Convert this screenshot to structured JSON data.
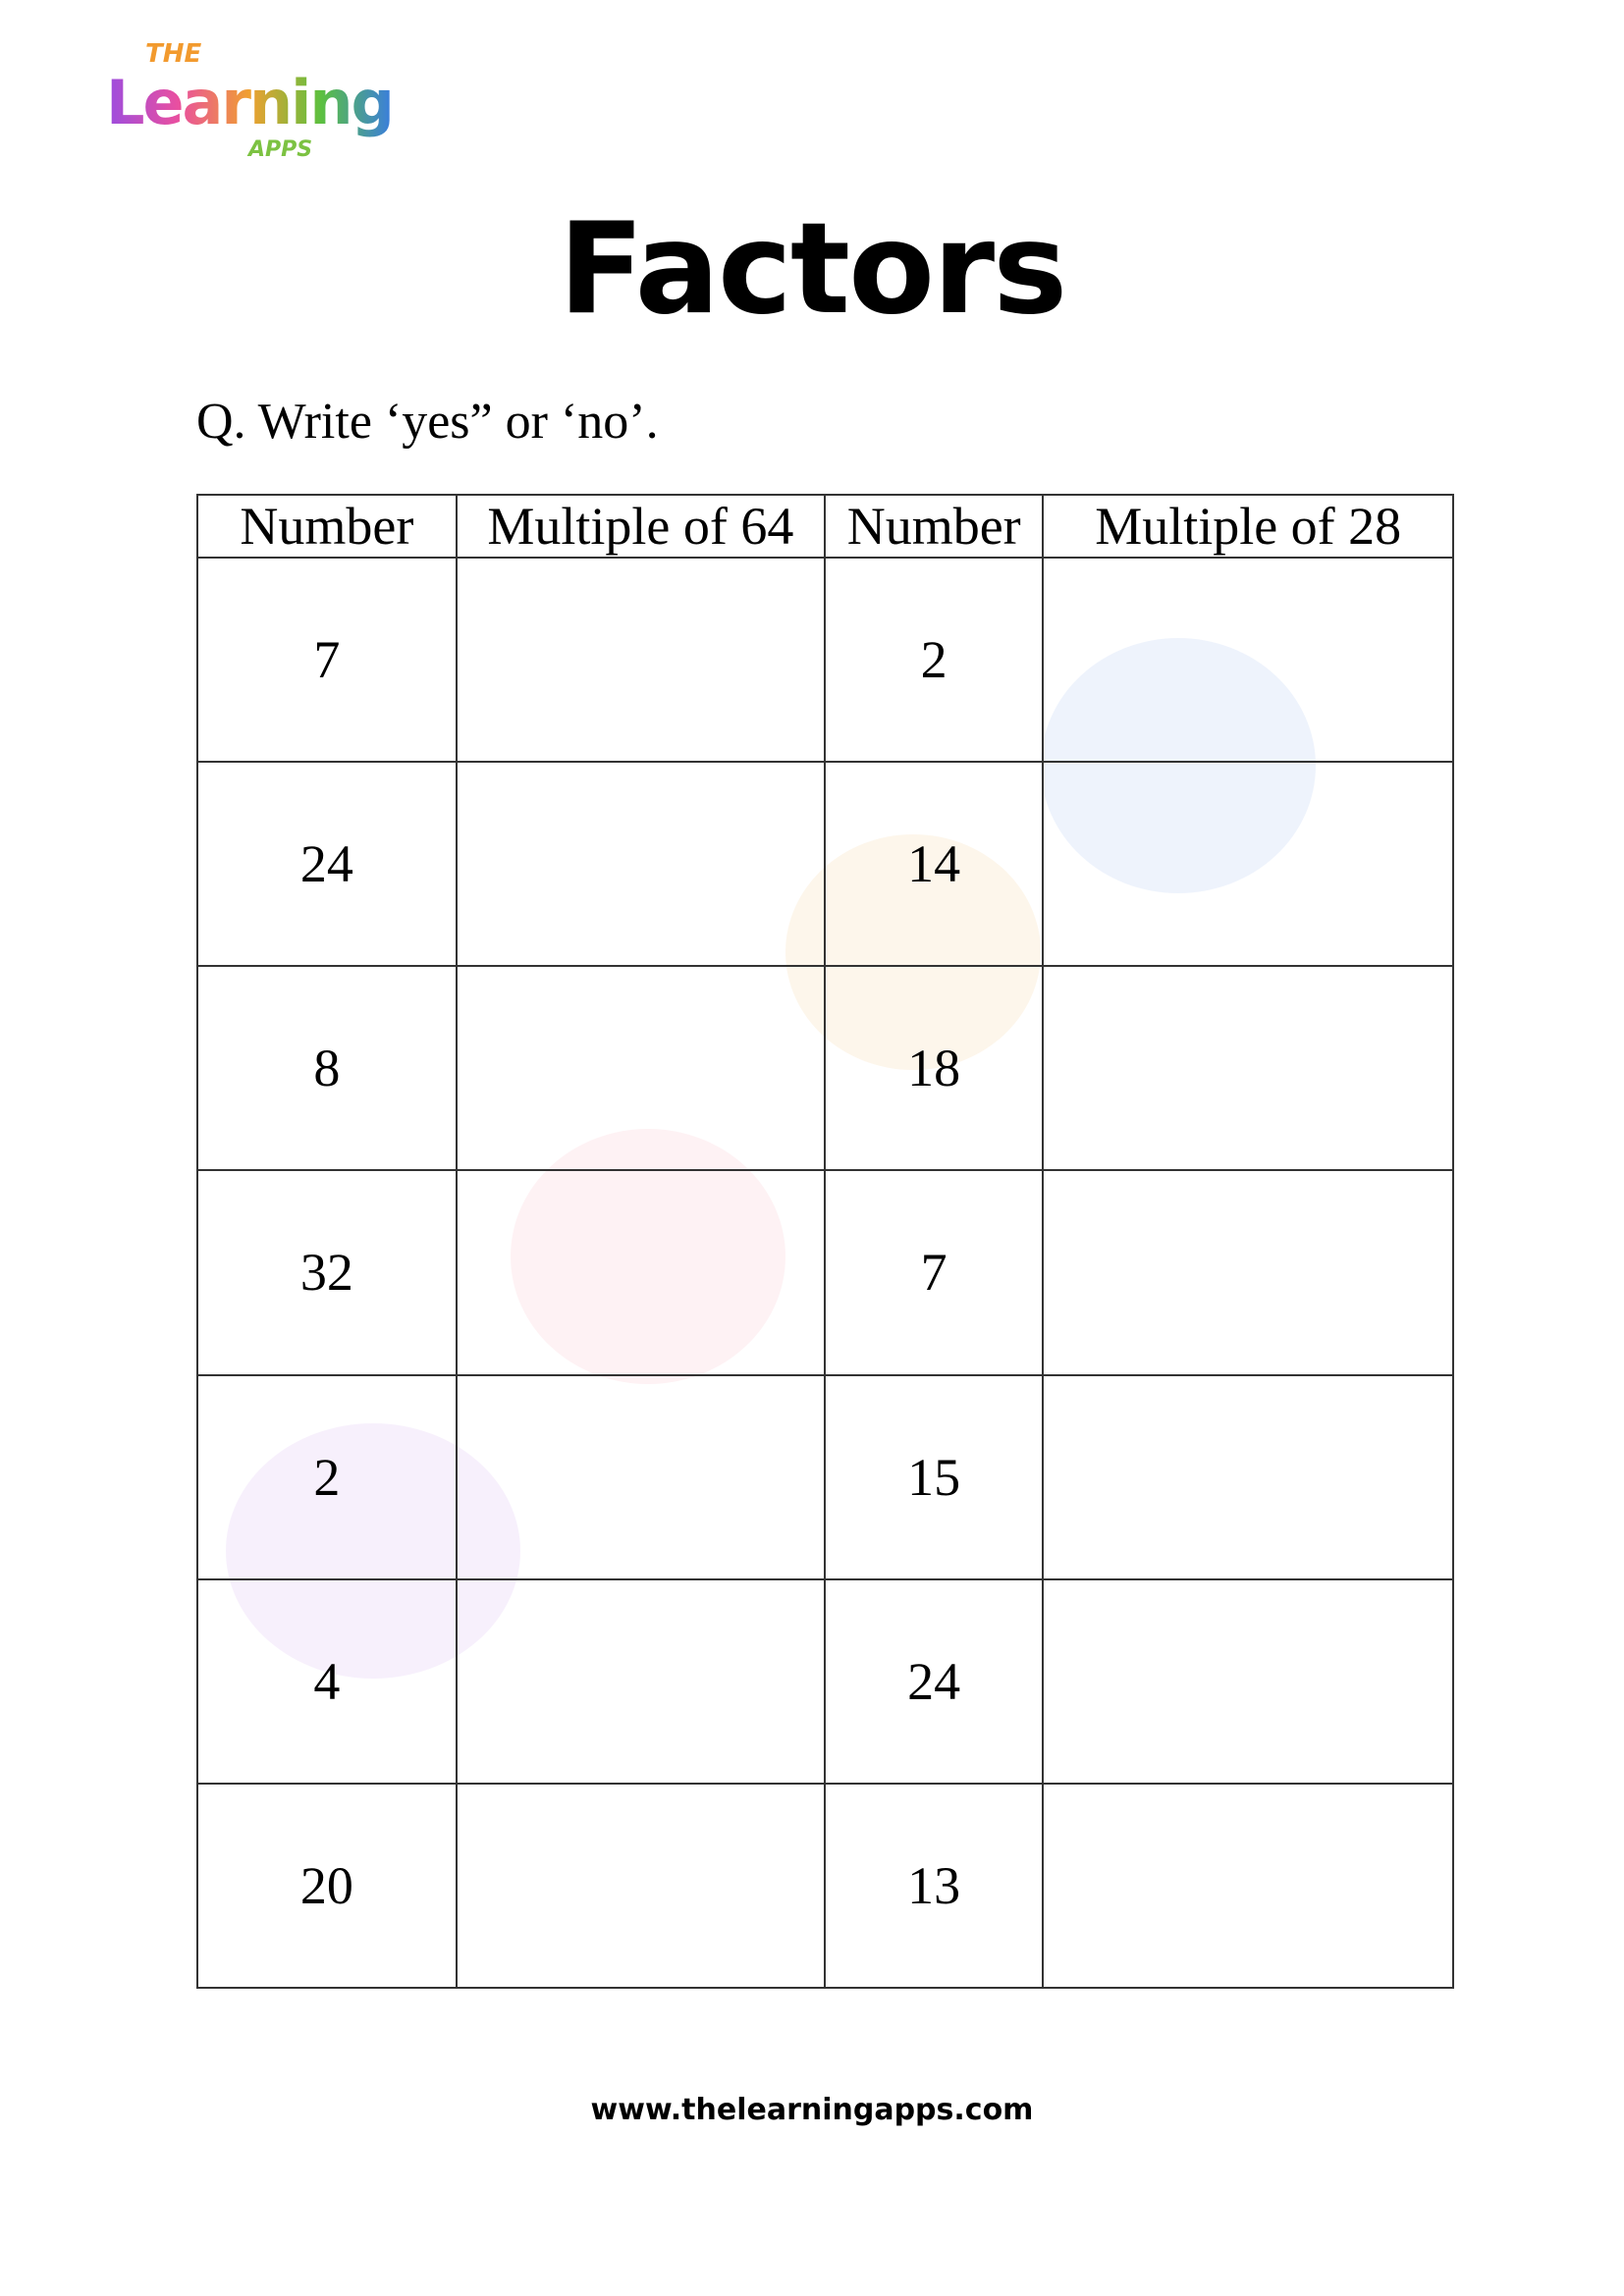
{
  "logo": {
    "line1": "THE",
    "line2": "Learning",
    "line3": "APPS"
  },
  "title": "Factors",
  "question": "Q. Write ‘yes” or ‘no’.",
  "table": {
    "headers": [
      "Number",
      "Multiple of 64",
      "Number",
      "Multiple of 28"
    ],
    "rows": [
      [
        "7",
        "",
        "2",
        ""
      ],
      [
        "24",
        "",
        "14",
        ""
      ],
      [
        "8",
        "",
        "18",
        ""
      ],
      [
        "32",
        "",
        "7",
        ""
      ],
      [
        "2",
        "",
        "15",
        ""
      ],
      [
        "4",
        "",
        "24",
        ""
      ],
      [
        "20",
        "",
        "13",
        ""
      ]
    ]
  },
  "footer": "www.thelearningapps.com"
}
